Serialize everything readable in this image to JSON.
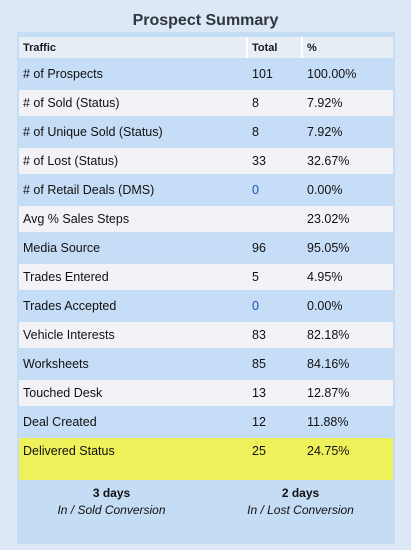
{
  "title": "Prospect Summary",
  "columns": [
    "Traffic",
    "Total",
    "%"
  ],
  "rows": [
    {
      "label": "# of Prospects",
      "total": "101",
      "pct": "100.00%"
    },
    {
      "label": "# of Sold (Status)",
      "total": "8",
      "pct": "7.92%"
    },
    {
      "label": "# of Unique Sold (Status)",
      "total": "8",
      "pct": "7.92%"
    },
    {
      "label": "# of Lost (Status)",
      "total": "33",
      "pct": "32.67%"
    },
    {
      "label": "# of Retail Deals (DMS)",
      "total": "0",
      "pct": "0.00%"
    },
    {
      "label": "Avg % Sales Steps",
      "total": "",
      "pct": "23.02%"
    },
    {
      "label": "Media Source",
      "total": "96",
      "pct": "95.05%"
    },
    {
      "label": "Trades Entered",
      "total": "5",
      "pct": "4.95%"
    },
    {
      "label": "Trades Accepted",
      "total": "0",
      "pct": "0.00%"
    },
    {
      "label": "Vehicle Interests",
      "total": "83",
      "pct": "82.18%"
    },
    {
      "label": "Worksheets",
      "total": "85",
      "pct": "84.16%"
    },
    {
      "label": "Touched Desk",
      "total": "13",
      "pct": "12.87%"
    },
    {
      "label": "Deal Created",
      "total": "12",
      "pct": "11.88%"
    },
    {
      "label": "Delivered Status",
      "total": "25",
      "pct": "24.75%"
    }
  ],
  "conversions": [
    {
      "days": "3 days",
      "label": "In / Sold Conversion"
    },
    {
      "days": "2 days",
      "label": "In / Lost Conversion"
    }
  ],
  "colors": {
    "row_blue": "#c6ddf7",
    "row_white": "#f3f3f7",
    "highlight": "#eef15a",
    "link": "#1f4fb0"
  }
}
